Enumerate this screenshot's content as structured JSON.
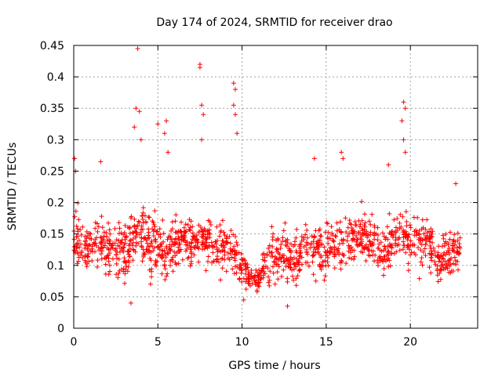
{
  "chart_data": {
    "type": "scatter",
    "title": "Day 174 of 2024, SRMTID for receiver drao",
    "xlabel": "GPS time / hours",
    "ylabel": "SRMTID / TECUs",
    "xlim": [
      0,
      24
    ],
    "ylim": [
      0,
      0.45
    ],
    "x_ticks": [
      0,
      5,
      10,
      15,
      20
    ],
    "x_tick_labels": [
      "0",
      "5",
      "10",
      "15",
      "20"
    ],
    "y_ticks": [
      0,
      0.05,
      0.1,
      0.15,
      0.2,
      0.25,
      0.3,
      0.35,
      0.4,
      0.45
    ],
    "y_tick_labels": [
      "0",
      "0.05",
      "0.1",
      "0.15",
      "0.2",
      "0.25",
      "0.3",
      "0.35",
      "0.4",
      "0.45"
    ],
    "grid": true,
    "marker": "+",
    "series_color": "#ff0000",
    "envelope": {
      "hours": [
        0.0,
        0.5,
        1.0,
        1.5,
        2.0,
        2.5,
        3.0,
        3.5,
        4.0,
        4.5,
        5.0,
        5.5,
        6.0,
        6.5,
        7.0,
        7.5,
        8.0,
        8.5,
        9.0,
        9.5,
        10.0,
        10.5,
        11.0,
        11.5,
        12.0,
        12.5,
        13.0,
        13.5,
        14.0,
        14.5,
        15.0,
        15.5,
        16.0,
        16.5,
        17.0,
        17.5,
        18.0,
        18.5,
        19.0,
        19.5,
        20.0,
        20.5,
        21.0,
        21.5,
        22.0,
        22.5,
        23.0
      ],
      "center": [
        0.15,
        0.13,
        0.13,
        0.14,
        0.12,
        0.13,
        0.12,
        0.15,
        0.16,
        0.13,
        0.13,
        0.12,
        0.13,
        0.14,
        0.13,
        0.14,
        0.14,
        0.13,
        0.13,
        0.12,
        0.1,
        0.075,
        0.08,
        0.11,
        0.12,
        0.12,
        0.11,
        0.12,
        0.13,
        0.12,
        0.12,
        0.13,
        0.14,
        0.14,
        0.15,
        0.14,
        0.13,
        0.12,
        0.14,
        0.15,
        0.14,
        0.13,
        0.14,
        0.12,
        0.11,
        0.12,
        0.13
      ],
      "spread": [
        0.06,
        0.05,
        0.05,
        0.05,
        0.05,
        0.05,
        0.05,
        0.06,
        0.06,
        0.05,
        0.06,
        0.05,
        0.05,
        0.05,
        0.05,
        0.05,
        0.05,
        0.05,
        0.05,
        0.05,
        0.04,
        0.02,
        0.025,
        0.05,
        0.05,
        0.05,
        0.05,
        0.05,
        0.05,
        0.05,
        0.05,
        0.05,
        0.05,
        0.05,
        0.05,
        0.05,
        0.05,
        0.05,
        0.05,
        0.05,
        0.05,
        0.05,
        0.05,
        0.05,
        0.05,
        0.05,
        0.05
      ]
    },
    "notable_points": [
      {
        "x": 0.05,
        "y": 0.27
      },
      {
        "x": 0.1,
        "y": 0.25
      },
      {
        "x": 3.8,
        "y": 0.445
      },
      {
        "x": 3.7,
        "y": 0.35
      },
      {
        "x": 3.9,
        "y": 0.345
      },
      {
        "x": 3.6,
        "y": 0.32
      },
      {
        "x": 4.0,
        "y": 0.3
      },
      {
        "x": 5.0,
        "y": 0.325
      },
      {
        "x": 5.5,
        "y": 0.33
      },
      {
        "x": 5.4,
        "y": 0.31
      },
      {
        "x": 5.6,
        "y": 0.28
      },
      {
        "x": 7.5,
        "y": 0.42
      },
      {
        "x": 7.5,
        "y": 0.415
      },
      {
        "x": 7.6,
        "y": 0.355
      },
      {
        "x": 7.7,
        "y": 0.34
      },
      {
        "x": 7.6,
        "y": 0.3
      },
      {
        "x": 9.5,
        "y": 0.39
      },
      {
        "x": 9.6,
        "y": 0.38
      },
      {
        "x": 9.5,
        "y": 0.355
      },
      {
        "x": 9.6,
        "y": 0.34
      },
      {
        "x": 9.7,
        "y": 0.31
      },
      {
        "x": 14.3,
        "y": 0.27
      },
      {
        "x": 15.9,
        "y": 0.28
      },
      {
        "x": 16.0,
        "y": 0.27
      },
      {
        "x": 19.6,
        "y": 0.36
      },
      {
        "x": 19.7,
        "y": 0.35
      },
      {
        "x": 19.5,
        "y": 0.33
      },
      {
        "x": 19.6,
        "y": 0.3
      },
      {
        "x": 19.7,
        "y": 0.28
      },
      {
        "x": 18.7,
        "y": 0.26
      },
      {
        "x": 1.6,
        "y": 0.265
      },
      {
        "x": 22.7,
        "y": 0.23
      },
      {
        "x": 3.4,
        "y": 0.04
      },
      {
        "x": 12.7,
        "y": 0.035
      },
      {
        "x": 10.1,
        "y": 0.045
      }
    ],
    "sample_count": 1400,
    "random_seed": 174
  }
}
